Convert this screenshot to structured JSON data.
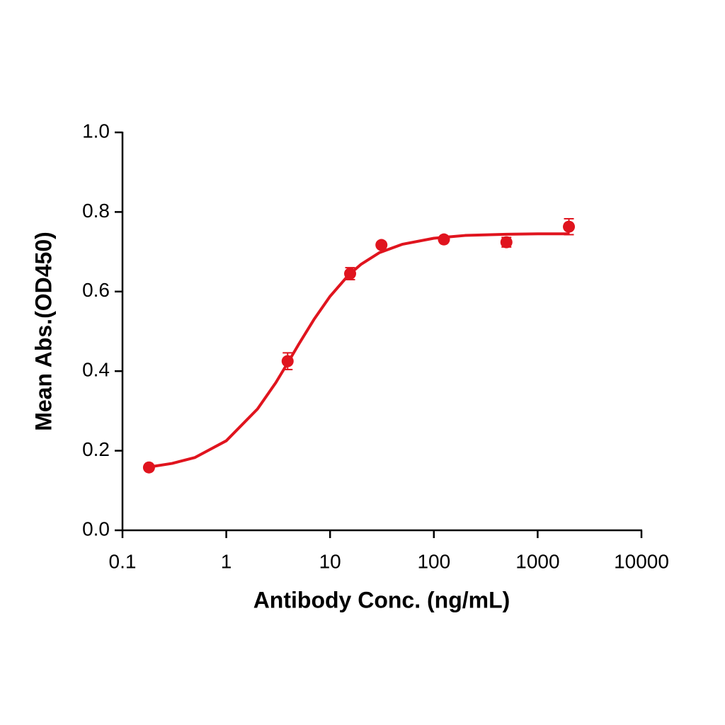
{
  "chart_data": {
    "type": "scatter",
    "x_label": "Antibody Conc. (ng/mL)",
    "y_label": "Mean Abs.(OD450)",
    "xlog": true,
    "xlim": [
      0.1,
      10000
    ],
    "xticks": [
      0.1,
      1,
      10,
      100,
      1000,
      10000
    ],
    "ylim": [
      0,
      1
    ],
    "yticks": [
      {
        "value": 0,
        "label": "0.0"
      },
      0.2,
      0.4,
      0.6,
      0.8,
      {
        "value": 1,
        "label": "1.0"
      }
    ],
    "x": [
      0.18,
      3.9,
      15.6,
      31.25,
      125,
      500,
      2000
    ],
    "series": [
      {
        "color": "#e0141e",
        "values": [
          0.158,
          0.425,
          0.645,
          0.717,
          0.731,
          0.724,
          0.763
        ],
        "errors": [
          0.004,
          0.021,
          0.015,
          0.006,
          0.006,
          0.012,
          0.02
        ]
      }
    ],
    "fit": {
      "x": [
        0.18,
        0.3,
        0.5,
        1,
        2,
        3,
        4,
        5,
        7,
        10,
        15,
        20,
        30,
        50,
        100,
        200,
        500,
        1000,
        2000
      ],
      "values": [
        0.159,
        0.168,
        0.183,
        0.225,
        0.305,
        0.371,
        0.425,
        0.468,
        0.53,
        0.588,
        0.641,
        0.669,
        0.698,
        0.719,
        0.734,
        0.741,
        0.744,
        0.745,
        0.745
      ]
    }
  }
}
